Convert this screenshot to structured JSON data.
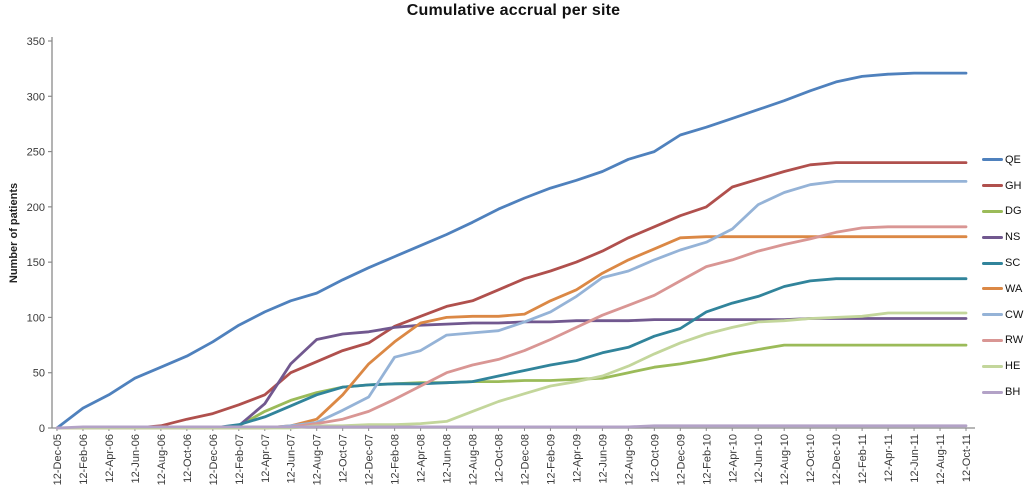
{
  "chart_data": {
    "type": "line",
    "title": "Cumulative accrual per site",
    "ylabel": "Number of patients",
    "xlabel": "",
    "ylim": [
      0,
      350
    ],
    "ytick_step": 50,
    "grid": false,
    "legend_position": "right",
    "categories": [
      "12-Dec-05",
      "12-Feb-06",
      "12-Apr-06",
      "12-Jun-06",
      "12-Aug-06",
      "12-Oct-06",
      "12-Dec-06",
      "12-Feb-07",
      "12-Apr-07",
      "12-Jun-07",
      "12-Aug-07",
      "12-Oct-07",
      "12-Dec-07",
      "12-Feb-08",
      "12-Apr-08",
      "12-Jun-08",
      "12-Aug-08",
      "12-Oct-08",
      "12-Dec-08",
      "12-Feb-09",
      "12-Apr-09",
      "12-Jun-09",
      "12-Aug-09",
      "12-Oct-09",
      "12-Dec-09",
      "12-Feb-10",
      "12-Apr-10",
      "12-Jun-10",
      "12-Aug-10",
      "12-Oct-10",
      "12-Dec-10",
      "12-Feb-11",
      "12-Apr-11",
      "12-Jun-11",
      "12-Aug-11",
      "12-Oct-11"
    ],
    "series": [
      {
        "name": "QE",
        "color": "#4F81BD",
        "values": [
          0,
          18,
          30,
          45,
          55,
          65,
          78,
          93,
          105,
          115,
          122,
          134,
          145,
          155,
          165,
          175,
          186,
          198,
          208,
          217,
          224,
          232,
          243,
          250,
          265,
          272,
          280,
          288,
          296,
          305,
          313,
          318,
          320,
          321,
          321,
          321
        ]
      },
      {
        "name": "GH",
        "color": "#B0504D",
        "values": [
          0,
          0,
          0,
          0,
          2,
          8,
          13,
          21,
          30,
          50,
          60,
          70,
          77,
          92,
          101,
          110,
          115,
          125,
          135,
          142,
          150,
          160,
          172,
          182,
          192,
          200,
          218,
          225,
          232,
          238,
          240,
          240,
          240,
          240,
          240,
          240
        ]
      },
      {
        "name": "DG",
        "color": "#9BBB59",
        "values": [
          0,
          0,
          0,
          0,
          0,
          0,
          0,
          2,
          15,
          25,
          32,
          37,
          39,
          40,
          41,
          41,
          42,
          42,
          43,
          43,
          44,
          45,
          50,
          55,
          58,
          62,
          67,
          71,
          75,
          75,
          75,
          75,
          75,
          75,
          75,
          75
        ]
      },
      {
        "name": "NS",
        "color": "#71588F",
        "values": [
          0,
          0,
          0,
          0,
          0,
          0,
          0,
          2,
          22,
          58,
          80,
          85,
          87,
          91,
          93,
          94,
          95,
          95,
          96,
          96,
          97,
          97,
          97,
          98,
          98,
          98,
          98,
          98,
          98,
          99,
          99,
          99,
          99,
          99,
          99,
          99
        ]
      },
      {
        "name": "SC",
        "color": "#31849B",
        "values": [
          0,
          0,
          0,
          0,
          0,
          0,
          0,
          3,
          10,
          20,
          30,
          37,
          39,
          40,
          40,
          41,
          42,
          47,
          52,
          57,
          61,
          68,
          73,
          83,
          90,
          105,
          113,
          119,
          128,
          133,
          135,
          135,
          135,
          135,
          135,
          135
        ]
      },
      {
        "name": "WA",
        "color": "#DB8845",
        "values": [
          0,
          0,
          0,
          0,
          0,
          0,
          0,
          0,
          0,
          2,
          8,
          30,
          58,
          78,
          95,
          100,
          101,
          101,
          103,
          115,
          125,
          140,
          152,
          162,
          172,
          173,
          173,
          173,
          173,
          173,
          173,
          173,
          173,
          173,
          173,
          173
        ]
      },
      {
        "name": "CW",
        "color": "#95B3D7",
        "values": [
          0,
          0,
          0,
          0,
          0,
          0,
          0,
          0,
          0,
          2,
          5,
          16,
          28,
          64,
          70,
          84,
          86,
          88,
          96,
          105,
          119,
          136,
          142,
          152,
          161,
          168,
          180,
          202,
          213,
          220,
          223,
          223,
          223,
          223,
          223,
          223
        ]
      },
      {
        "name": "RW",
        "color": "#D99694",
        "values": [
          0,
          0,
          0,
          0,
          0,
          0,
          0,
          0,
          0,
          1,
          4,
          8,
          15,
          26,
          38,
          50,
          57,
          62,
          70,
          80,
          91,
          102,
          111,
          120,
          133,
          146,
          152,
          160,
          166,
          171,
          177,
          181,
          182,
          182,
          182,
          182
        ]
      },
      {
        "name": "HE",
        "color": "#C3D69B",
        "values": [
          0,
          0,
          0,
          0,
          0,
          0,
          0,
          0,
          0,
          0,
          2,
          2,
          3,
          3,
          4,
          6,
          15,
          24,
          31,
          38,
          42,
          47,
          56,
          67,
          77,
          85,
          91,
          96,
          97,
          99,
          100,
          101,
          104,
          104,
          104,
          104
        ]
      },
      {
        "name": "BH",
        "color": "#B3A2C7",
        "values": [
          0,
          1,
          1,
          1,
          1,
          1,
          1,
          1,
          1,
          1,
          1,
          1,
          1,
          1,
          1,
          1,
          1,
          1,
          1,
          1,
          1,
          1,
          1,
          2,
          2,
          2,
          2,
          2,
          2,
          2,
          2,
          2,
          2,
          2,
          2,
          2
        ]
      }
    ],
    "axis_color": "#8a8a8a"
  }
}
